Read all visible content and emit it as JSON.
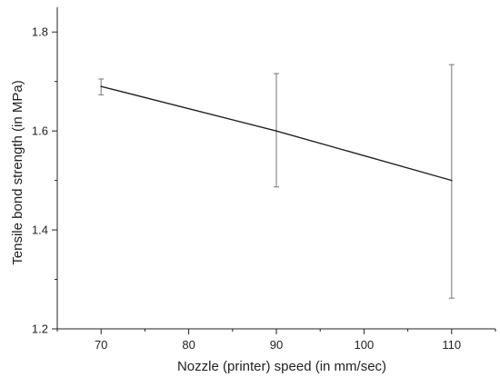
{
  "chart_data": {
    "type": "line",
    "title": "",
    "xlabel": "Nozzle (printer) speed (in mm/sec)",
    "ylabel": "Tensile bond strength (in MPa)",
    "xlim": [
      65,
      115
    ],
    "ylim": [
      1.2,
      1.85
    ],
    "xticks": [
      70,
      80,
      90,
      100,
      110
    ],
    "yticks": [
      1.2,
      1.4,
      1.6,
      1.8
    ],
    "grid": false,
    "legend": "none",
    "series": [
      {
        "x": [
          70,
          90,
          110
        ],
        "y": [
          1.69,
          1.6,
          1.5
        ],
        "err_low": [
          1.673,
          1.487,
          1.262
        ],
        "err_high": [
          1.705,
          1.716,
          1.734
        ],
        "color": "#222222",
        "error_color": "#8a8a8a"
      }
    ]
  }
}
